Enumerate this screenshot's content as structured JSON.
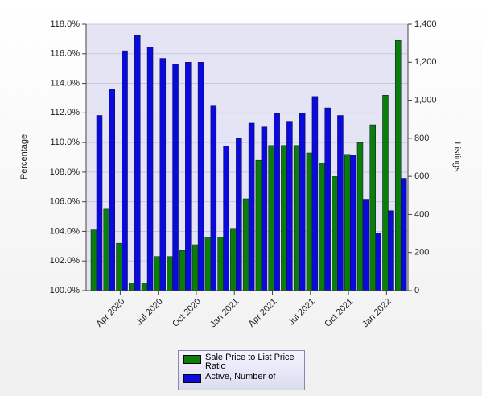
{
  "chart_data": {
    "type": "bar",
    "categories": [
      null,
      null,
      "Apr 2020",
      null,
      null,
      "Jul 2020",
      null,
      null,
      "Oct 2020",
      null,
      null,
      "Jan 2021",
      null,
      null,
      "Apr 2021",
      null,
      null,
      "Jul 2021",
      null,
      null,
      "Oct 2021",
      null,
      null,
      "Jan 2022",
      null
    ],
    "series": [
      {
        "name": "Sale Price to List Price Ratio",
        "color": "#0a7d0a",
        "axis": "y",
        "values": [
          104.1,
          105.5,
          103.2,
          100.5,
          100.5,
          102.3,
          102.3,
          102.7,
          103.1,
          103.6,
          103.6,
          104.2,
          106.2,
          108.8,
          109.8,
          109.8,
          109.8,
          109.3,
          108.6,
          107.7,
          109.2,
          110.0,
          111.2,
          113.2,
          116.9
        ]
      },
      {
        "name": "Active, Number of",
        "color": "#0a0adc",
        "axis": "y2",
        "values": [
          920,
          1060,
          1260,
          1340,
          1280,
          1220,
          1190,
          1200,
          1200,
          970,
          760,
          800,
          880,
          860,
          930,
          890,
          930,
          1020,
          960,
          920,
          710,
          480,
          300,
          420,
          590
        ]
      }
    ],
    "ylabel": "Percentage",
    "y2label": "Listings",
    "ylim": [
      100,
      118
    ],
    "yticks": [
      {
        "value": 100,
        "label": "100.0%"
      },
      {
        "value": 102,
        "label": "102.0%"
      },
      {
        "value": 104,
        "label": "104.0%"
      },
      {
        "value": 106,
        "label": "106.0%"
      },
      {
        "value": 108,
        "label": "108.0%"
      },
      {
        "value": 110,
        "label": "110.0%"
      },
      {
        "value": 112,
        "label": "112.0%"
      },
      {
        "value": 114,
        "label": "114.0%"
      },
      {
        "value": 116,
        "label": "116.0%"
      },
      {
        "value": 118,
        "label": "118.0%"
      }
    ],
    "y2lim": [
      0,
      1400
    ],
    "y2ticks": [
      0,
      200,
      400,
      600,
      800,
      {
        "value": 1000,
        "label": "1,000"
      },
      {
        "value": 1200,
        "label": "1,200"
      },
      {
        "value": 1400,
        "label": "1,400"
      }
    ],
    "grid": true,
    "legend": "bottom"
  }
}
